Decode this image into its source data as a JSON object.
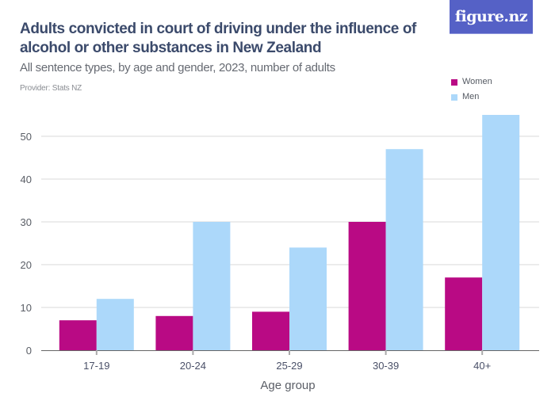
{
  "header": {
    "title": "Adults convicted in court of driving under the influence of alcohol or other substances in New Zealand",
    "subtitle": "All sentence types, by age and gender, 2023, number of adults",
    "provider": "Provider: Stats NZ",
    "logo_text": "figure.nz"
  },
  "colors": {
    "women": "#b90a84",
    "men": "#acd8fa",
    "logo_bg": "#5561c6",
    "title": "#3b4a6b"
  },
  "chart_data": {
    "type": "bar",
    "title": "Adults convicted in court of driving under the influence of alcohol or other substances in New Zealand",
    "subtitle": "All sentence types, by age and gender, 2023, number of adults",
    "xlabel": "Age group",
    "ylabel": "",
    "categories": [
      "17-19",
      "20-24",
      "25-29",
      "30-39",
      "40+"
    ],
    "series": [
      {
        "name": "Women",
        "values": [
          7,
          8,
          9,
          30,
          17
        ]
      },
      {
        "name": "Men",
        "values": [
          12,
          30,
          24,
          47,
          55
        ]
      }
    ],
    "ylim": [
      0,
      55
    ],
    "yticks": [
      0,
      10,
      20,
      30,
      40,
      50
    ],
    "grid": true,
    "legend": "top-right"
  }
}
